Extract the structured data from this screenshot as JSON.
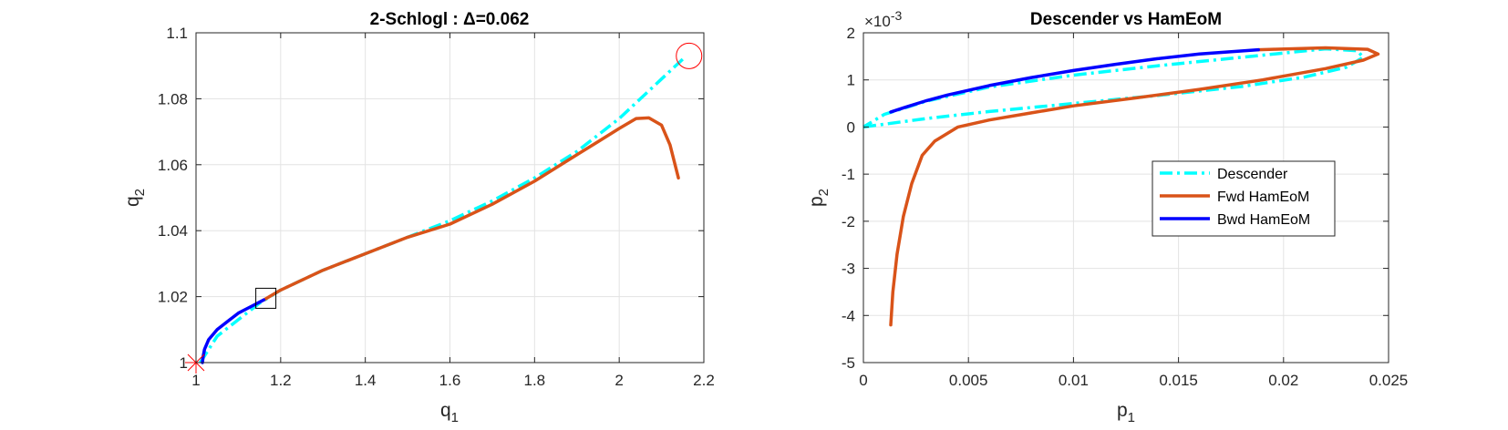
{
  "chart_data": [
    {
      "type": "line",
      "title": "2-Schlogl : Δ=0.062",
      "xlabel": "q",
      "xlabel_sub": "1",
      "ylabel": "q",
      "ylabel_sub": "2",
      "xlim": [
        1,
        2.2
      ],
      "ylim": [
        1,
        1.1
      ],
      "xticks": [
        1,
        1.2,
        1.4,
        1.6,
        1.8,
        2,
        2.2
      ],
      "xtick_labels": [
        "1",
        "1.2",
        "1.4",
        "1.6",
        "1.8",
        "2",
        "2.2"
      ],
      "yticks": [
        1,
        1.02,
        1.04,
        1.06,
        1.08,
        1.1
      ],
      "ytick_labels": [
        "1",
        "1.02",
        "1.04",
        "1.06",
        "1.08",
        "1.1"
      ],
      "grid": true,
      "series": [
        {
          "color": "#00FFFF",
          "style": "dashdot",
          "x": [
            1.01,
            1.05,
            1.1,
            1.15,
            1.2,
            1.3,
            1.4,
            1.5,
            1.6,
            1.7,
            1.8,
            1.9,
            2.0,
            2.05,
            2.1,
            2.15
          ],
          "y": [
            1.0,
            1.008,
            1.013,
            1.018,
            1.022,
            1.028,
            1.033,
            1.038,
            1.043,
            1.049,
            1.056,
            1.064,
            1.074,
            1.08,
            1.086,
            1.092
          ]
        },
        {
          "color": "#D95319",
          "style": "solid",
          "x": [
            1.16,
            1.2,
            1.3,
            1.4,
            1.5,
            1.6,
            1.7,
            1.8,
            1.9,
            1.95,
            2.0,
            2.04,
            2.07,
            2.1,
            2.12,
            2.14
          ],
          "y": [
            1.019,
            1.022,
            1.028,
            1.033,
            1.038,
            1.042,
            1.048,
            1.055,
            1.063,
            1.067,
            1.071,
            1.074,
            1.0742,
            1.072,
            1.066,
            1.056
          ]
        },
        {
          "color": "#0000FF",
          "style": "solid",
          "x": [
            1.015,
            1.017,
            1.02,
            1.03,
            1.05,
            1.08,
            1.1,
            1.13,
            1.16
          ],
          "y": [
            1.0,
            1.002,
            1.004,
            1.007,
            1.01,
            1.013,
            1.015,
            1.017,
            1.019
          ]
        }
      ],
      "markers": [
        {
          "kind": "star",
          "color": "#FF0000",
          "x": 1.0,
          "y": 1.0
        },
        {
          "kind": "square",
          "color": "#000000",
          "x": 1.165,
          "y": 1.0195
        },
        {
          "kind": "circle",
          "color": "#FF0000",
          "x": 2.165,
          "y": 1.093
        }
      ]
    },
    {
      "type": "line",
      "title": "Descender vs HamEoM",
      "xlabel": "p",
      "xlabel_sub": "1",
      "ylabel": "p",
      "ylabel_sub": "2",
      "y_exponent": "×10",
      "y_exponent_power": "-3",
      "xlim": [
        0,
        0.025
      ],
      "ylim": [
        -5,
        2
      ],
      "xticks": [
        0,
        0.005,
        0.01,
        0.015,
        0.02,
        0.025
      ],
      "xtick_labels": [
        "0",
        "0.005",
        "0.01",
        "0.015",
        "0.02",
        "0.025"
      ],
      "yticks": [
        -5,
        -4,
        -3,
        -2,
        -1,
        0,
        1,
        2
      ],
      "ytick_labels": [
        "-5",
        "-4",
        "-3",
        "-2",
        "-1",
        "0",
        "1",
        "2"
      ],
      "grid": true,
      "legend": {
        "position": "right",
        "entries": [
          "Descender",
          "Fwd HamEoM",
          "Bwd HamEoM"
        ]
      },
      "series": [
        {
          "name": "Descender",
          "color": "#00FFFF",
          "style": "dashdot",
          "x": [
            0.0,
            0.003,
            0.006,
            0.01,
            0.014,
            0.018,
            0.021,
            0.023,
            0.0238,
            0.0235,
            0.022,
            0.018,
            0.014,
            0.01,
            0.006,
            0.003,
            0.001,
            0.0
          ],
          "y": [
            0.0,
            0.18,
            0.33,
            0.5,
            0.67,
            0.86,
            1.06,
            1.27,
            1.48,
            1.62,
            1.66,
            1.48,
            1.3,
            1.1,
            0.85,
            0.55,
            0.27,
            0.0
          ]
        },
        {
          "name": "Fwd HamEoM",
          "color": "#D95319",
          "style": "solid",
          "x": [
            0.0013,
            0.0014,
            0.0016,
            0.0019,
            0.0023,
            0.0028,
            0.0034,
            0.0045,
            0.006,
            0.008,
            0.01,
            0.013,
            0.016,
            0.019,
            0.022,
            0.0238,
            0.0245,
            0.024,
            0.022,
            0.0195,
            0.0188
          ],
          "y": [
            -4.2,
            -3.5,
            -2.7,
            -1.9,
            -1.2,
            -0.6,
            -0.3,
            0.0,
            0.15,
            0.3,
            0.45,
            0.62,
            0.8,
            1.0,
            1.24,
            1.42,
            1.55,
            1.65,
            1.68,
            1.65,
            1.64
          ]
        },
        {
          "name": "Bwd HamEoM",
          "color": "#0000FF",
          "style": "solid",
          "x": [
            0.0013,
            0.002,
            0.003,
            0.004,
            0.006,
            0.008,
            0.01,
            0.012,
            0.014,
            0.016,
            0.0188
          ],
          "y": [
            0.32,
            0.42,
            0.56,
            0.68,
            0.88,
            1.05,
            1.2,
            1.33,
            1.45,
            1.55,
            1.64
          ]
        }
      ]
    }
  ]
}
